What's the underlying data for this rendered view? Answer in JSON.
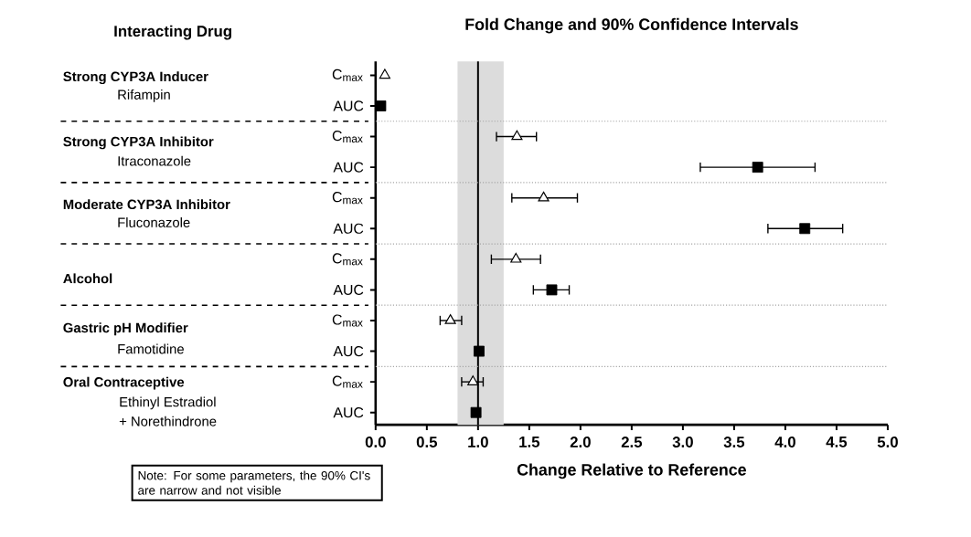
{
  "chart_data": {
    "type": "scatter",
    "orientation": "horizontal",
    "title": "Fold Change and 90% Confidence Intervals",
    "xlabel": "Change Relative to Reference",
    "categories": [
      "C$_{max}$",
      "AUC",
      "C$_{max}$",
      "AUC",
      "C$_{max}$",
      "AUC",
      "C$_{max}$",
      "AUC",
      "C$_{max}$",
      "AUC",
      "C$_{max}$",
      "AUC"
    ],
    "series": [
      {
        "color": "#000000",
        "marker": "triangle",
        "values": [
          0.09,
          null,
          1.38,
          null,
          1.64,
          null,
          1.37,
          null,
          0.73,
          null,
          0.95,
          null
        ],
        "errors": [
          null,
          null,
          [
            1.18,
            1.57
          ],
          null,
          [
            1.33,
            1.97
          ],
          null,
          [
            1.13,
            1.61
          ],
          null,
          [
            0.63,
            0.84
          ],
          null,
          [
            0.84,
            1.05
          ],
          null
        ]
      },
      {
        "color": "#000000",
        "marker": "square",
        "values": [
          null,
          0.05,
          null,
          3.73,
          null,
          4.19,
          null,
          1.72,
          null,
          1.01,
          null,
          0.98
        ],
        "errors": [
          null,
          null,
          null,
          [
            3.17,
            4.29
          ],
          null,
          [
            3.83,
            4.56
          ],
          null,
          [
            1.54,
            1.89
          ],
          null,
          [
            0.97,
            1.05
          ],
          null,
          null
        ]
      }
    ],
    "xlim": [
      0,
      5
    ],
    "xticks": [
      {
        "value": 0,
        "label": "0.0"
      },
      {
        "value": 0.5,
        "label": "0.5"
      },
      {
        "value": 1,
        "label": "1.0"
      },
      {
        "value": 1.5,
        "label": "1.5"
      },
      {
        "value": 2,
        "label": "2.0"
      },
      {
        "value": 2.5,
        "label": "2.5"
      },
      {
        "value": 3,
        "label": "3.0"
      },
      {
        "value": 3.5,
        "label": "3.5"
      },
      {
        "value": 4,
        "label": "4.0"
      },
      {
        "value": 4.5,
        "label": "4.5"
      },
      {
        "value": 5,
        "label": "5.0"
      }
    ],
    "bands": [
      {
        "axis": "x",
        "from": 0.8,
        "to": 1.25,
        "color": "#dcdcdc"
      }
    ],
    "ref_lines": [
      {
        "axis": "x",
        "value": 1,
        "color": "#000000"
      }
    ],
    "annotations": [
      "Interacting Drug",
      "Strong CYP3A Inducer",
      "Rifampin",
      "Strong CYP3A Inhibitor",
      "Itraconazole",
      "Moderate CYP3A Inhibitor",
      "Fluconazole",
      "Alcohol",
      "Gastric pH Modifier",
      "Famotidine",
      "Oral Contraceptive",
      "Ethinyl Estradiol",
      "+ Norethindrone",
      "Note: For some parameters, the 90% CI's are narrow and not visible"
    ]
  }
}
